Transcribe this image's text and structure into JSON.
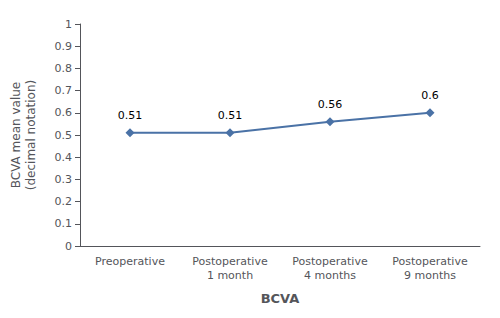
{
  "chart_data": {
    "type": "line",
    "categories": [
      "Preoperative",
      "Postoperative\n1 month",
      "Postoperative\n4 months",
      "Postoperative\n9 months"
    ],
    "values": [
      0.51,
      0.51,
      0.56,
      0.6
    ],
    "xlabel": "BCVA",
    "ylabel": "BCVA mean value\n(decimal notation)",
    "ylim": [
      0,
      1
    ],
    "yticks": [
      0,
      0.1,
      0.2,
      0.3,
      0.4,
      0.5,
      0.6,
      0.7,
      0.8,
      0.9,
      1
    ],
    "color": "#4A72A6",
    "marker": "diamond",
    "data_labels": true,
    "grid": false
  }
}
